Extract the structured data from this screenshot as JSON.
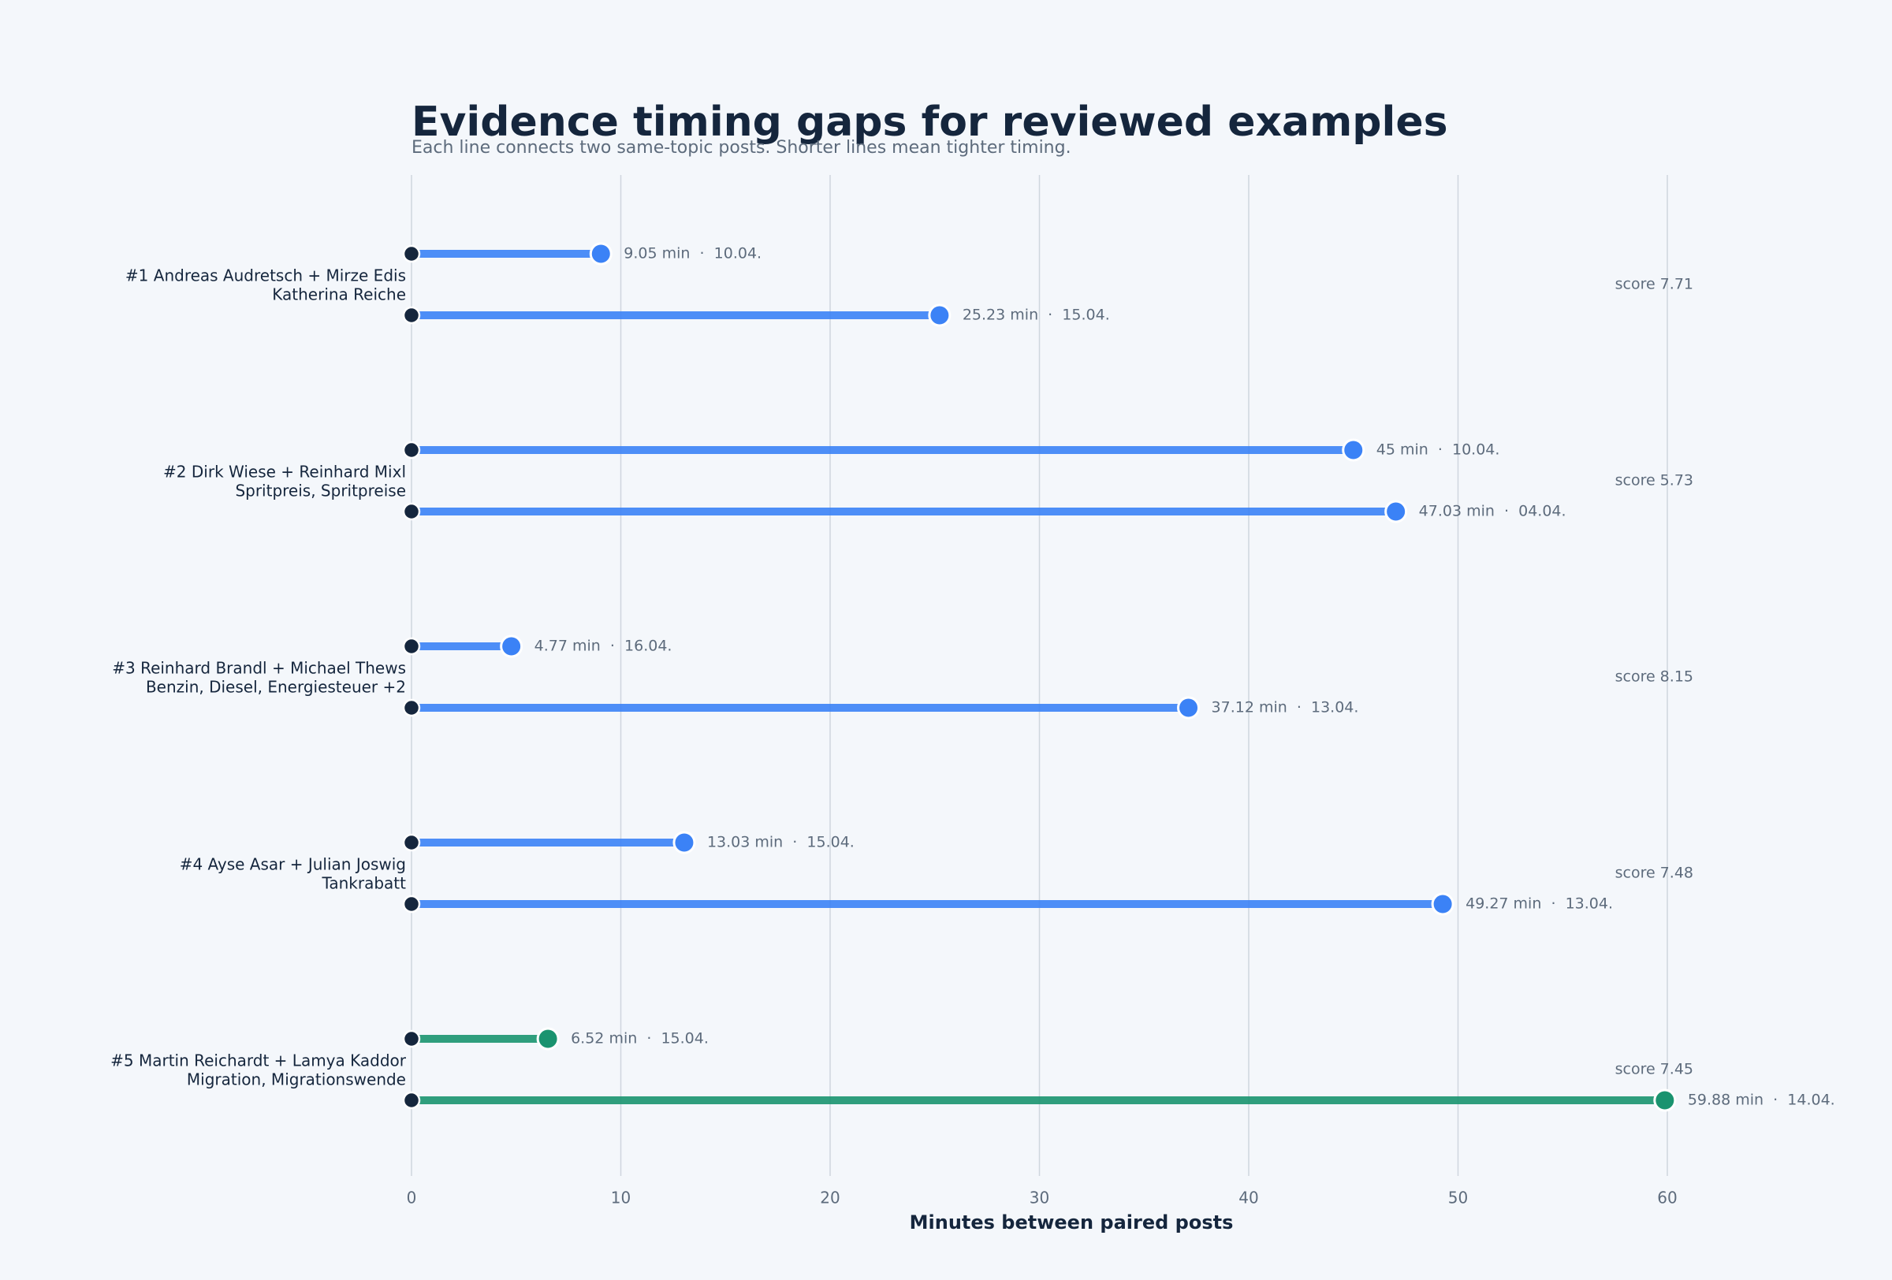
{
  "chart_data": {
    "type": "dumbbell",
    "title": "Evidence timing gaps for reviewed examples",
    "subtitle": "Each line connects two same-topic posts. Shorter lines mean tighter timing.",
    "x_label": "Minutes between paired posts",
    "xlim": [
      0,
      60
    ],
    "xticks": [
      0,
      10,
      20,
      30,
      40,
      50,
      60
    ],
    "grid": true,
    "groups": [
      {
        "label": "#1 Andreas Audretsch + Mirze Edis",
        "sublabel": "Katherina Reiche",
        "score": "score 7.71",
        "color": "#3b82f6",
        "values": [
          9.05,
          25.23
        ],
        "value_labels": [
          "9.05 min  ·  10.04.",
          "25.23 min  ·  15.04."
        ]
      },
      {
        "label": "#2 Dirk Wiese + Reinhard Mixl",
        "sublabel": "Spritpreis, Spritpreise",
        "score": "score 5.73",
        "color": "#3b82f6",
        "values": [
          45,
          47.03
        ],
        "value_labels": [
          "45 min  ·  10.04.",
          "47.03 min  ·  04.04."
        ]
      },
      {
        "label": "#3 Reinhard Brandl + Michael Thews",
        "sublabel": "Benzin, Diesel, Energiesteuer +2",
        "score": "score 8.15",
        "color": "#3b82f6",
        "values": [
          4.77,
          37.12
        ],
        "value_labels": [
          "4.77 min  ·  16.04.",
          "37.12 min  ·  13.04."
        ]
      },
      {
        "label": "#4 Ayse Asar + Julian Joswig",
        "sublabel": "Tankrabatt",
        "score": "score 7.48",
        "color": "#3b82f6",
        "values": [
          13.03,
          49.27
        ],
        "value_labels": [
          "13.03 min  ·  15.04.",
          "49.27 min  ·  13.04."
        ]
      },
      {
        "label": "#5 Martin Reichardt + Lamya Kaddor",
        "sublabel": "Migration, Migrationswende",
        "score": "score 7.45",
        "color": "#1a936f",
        "values": [
          6.52,
          59.88
        ],
        "value_labels": [
          "6.52 min  ·  15.04.",
          "59.88 min  ·  14.04."
        ]
      }
    ]
  }
}
